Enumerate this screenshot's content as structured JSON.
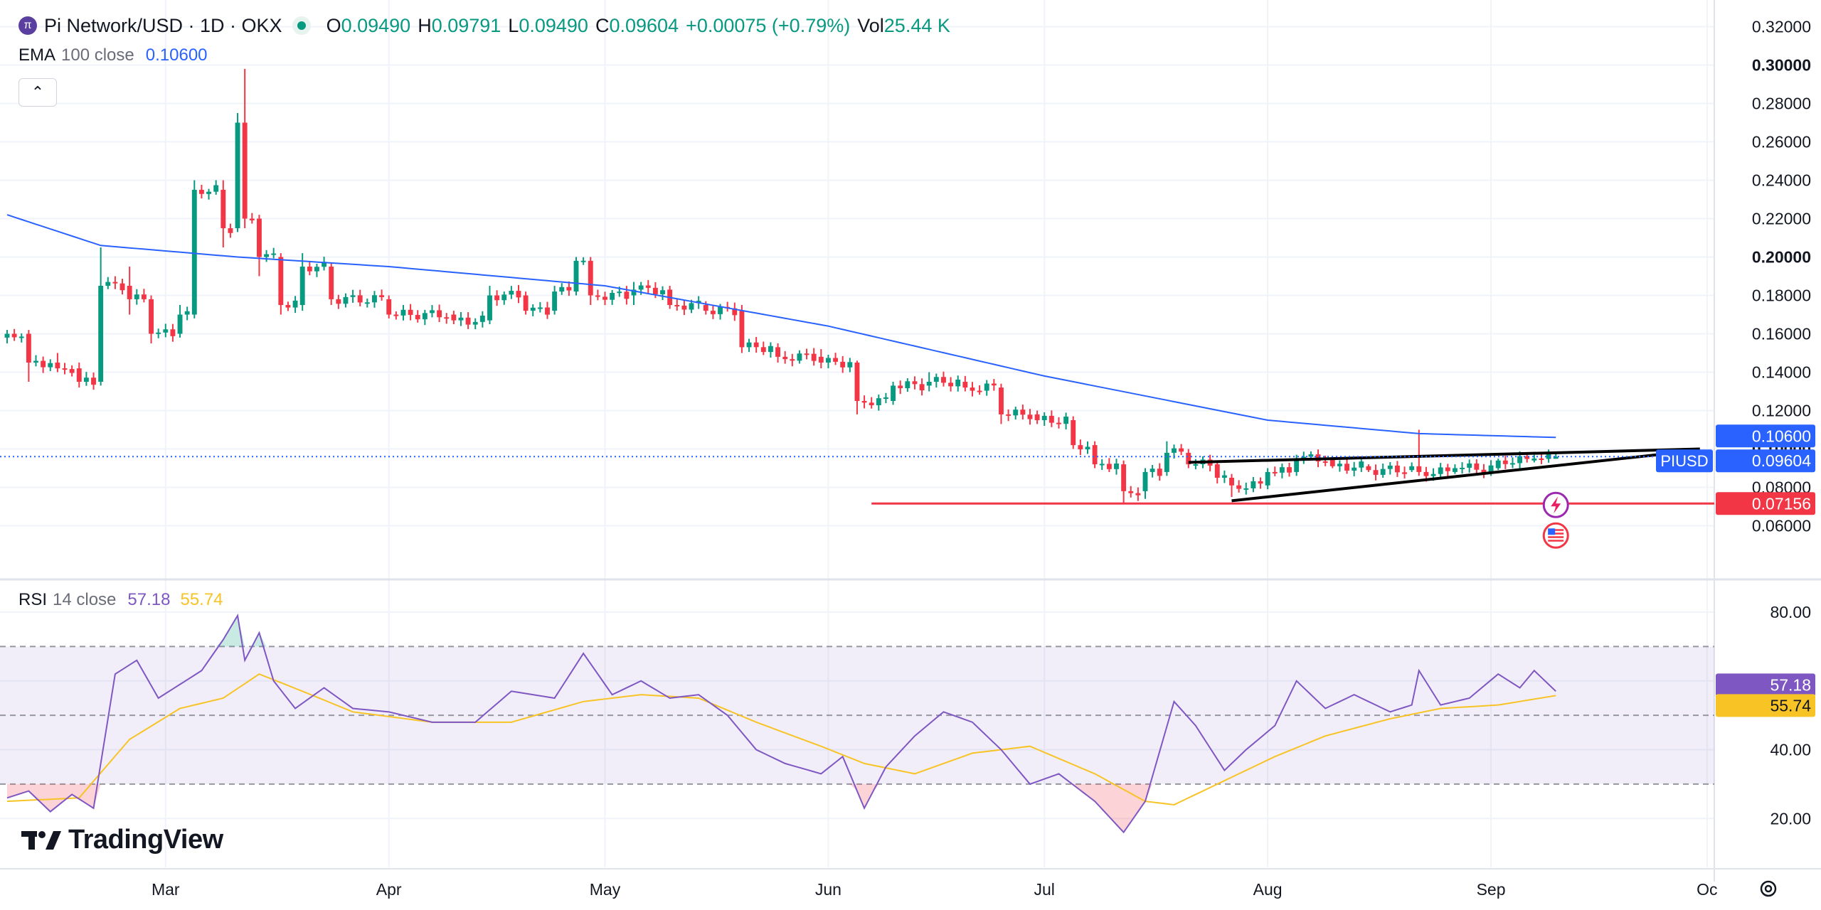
{
  "header": {
    "logo_glyph": "π",
    "symbol": "Pi Network/USD · 1D · OKX",
    "o_label": "O",
    "o_value": "0.09490",
    "h_label": "H",
    "h_value": "0.09791",
    "l_label": "L",
    "l_value": "0.09490",
    "c_label": "C",
    "c_value": "0.09604",
    "change": "+0.00075 (+0.79%)",
    "vol_label": "Vol",
    "vol_value": "25.44 K",
    "up_color": "#089981"
  },
  "ema": {
    "label": "EMA",
    "params": "100 close",
    "value": "0.10600",
    "color": "#2962ff"
  },
  "rsi": {
    "label": "RSI",
    "params": "14 close",
    "value": "57.18",
    "ma_value": "55.74",
    "line_color": "#7e57c2",
    "ma_color": "#f7c325"
  },
  "collapse_glyph": "⌃",
  "brand": "TradingView",
  "chart_data": [
    {
      "type": "candlestick",
      "title": "Pi Network/USD · 1D · OKX",
      "ylim": [
        0.045,
        0.325
      ],
      "y_ticks": [
        "0.32000",
        "0.30000",
        "0.28000",
        "0.26000",
        "0.24000",
        "0.22000",
        "0.20000",
        "0.18000",
        "0.16000",
        "0.14000",
        "0.12000",
        "0.10000",
        "0.08000",
        "0.06000"
      ],
      "y_tick_values": [
        0.32,
        0.3,
        0.28,
        0.26,
        0.24,
        0.22,
        0.2,
        0.18,
        0.16,
        0.14,
        0.12,
        0.1,
        0.08,
        0.06
      ],
      "x_start": "2025-02-07",
      "x_end": "2025-10-02",
      "x_ticks": [
        {
          "label": "Mar",
          "date": "2025-03-01"
        },
        {
          "label": "Apr",
          "date": "2025-04-01"
        },
        {
          "label": "May",
          "date": "2025-05-01"
        },
        {
          "label": "Jun",
          "date": "2025-06-01"
        },
        {
          "label": "Jul",
          "date": "2025-07-01"
        },
        {
          "label": "Aug",
          "date": "2025-08-01"
        },
        {
          "label": "Sep",
          "date": "2025-09-01"
        },
        {
          "label": "Oc",
          "date": "2025-10-01"
        }
      ],
      "up_color": "#089981",
      "down_color": "#f23645",
      "ohlc_anchors": [
        [
          "2025-02-07",
          0.158,
          0.162,
          0.155,
          0.16
        ],
        [
          "2025-02-10",
          0.16,
          0.162,
          0.135,
          0.145
        ],
        [
          "2025-02-14",
          0.145,
          0.15,
          0.14,
          0.142
        ],
        [
          "2025-02-17",
          0.142,
          0.145,
          0.132,
          0.135
        ],
        [
          "2025-02-20",
          0.135,
          0.205,
          0.133,
          0.185
        ],
        [
          "2025-02-24",
          0.185,
          0.195,
          0.17,
          0.178
        ],
        [
          "2025-02-27",
          0.178,
          0.18,
          0.155,
          0.16
        ],
        [
          "2025-03-03",
          0.16,
          0.175,
          0.158,
          0.17
        ],
        [
          "2025-03-05",
          0.17,
          0.24,
          0.168,
          0.235
        ],
        [
          "2025-03-09",
          0.235,
          0.24,
          0.205,
          0.215
        ],
        [
          "2025-03-11",
          0.215,
          0.275,
          0.213,
          0.27
        ],
        [
          "2025-03-12",
          0.27,
          0.298,
          0.215,
          0.22
        ],
        [
          "2025-03-14",
          0.22,
          0.222,
          0.19,
          0.2
        ],
        [
          "2025-03-17",
          0.2,
          0.202,
          0.17,
          0.175
        ],
        [
          "2025-03-20",
          0.175,
          0.202,
          0.172,
          0.195
        ],
        [
          "2025-03-24",
          0.195,
          0.197,
          0.175,
          0.178
        ],
        [
          "2025-04-01",
          0.178,
          0.18,
          0.168,
          0.17
        ],
        [
          "2025-04-10",
          0.17,
          0.172,
          0.165,
          0.167
        ],
        [
          "2025-04-15",
          0.167,
          0.185,
          0.165,
          0.18
        ],
        [
          "2025-04-20",
          0.18,
          0.182,
          0.17,
          0.172
        ],
        [
          "2025-04-24",
          0.172,
          0.185,
          0.17,
          0.182
        ],
        [
          "2025-04-27",
          0.182,
          0.2,
          0.18,
          0.198
        ],
        [
          "2025-04-29",
          0.198,
          0.2,
          0.175,
          0.18
        ],
        [
          "2025-05-05",
          0.18,
          0.187,
          0.175,
          0.183
        ],
        [
          "2025-05-10",
          0.183,
          0.185,
          0.173,
          0.175
        ],
        [
          "2025-05-15",
          0.175,
          0.177,
          0.17,
          0.172
        ],
        [
          "2025-05-20",
          0.172,
          0.175,
          0.15,
          0.153
        ],
        [
          "2025-05-25",
          0.153,
          0.155,
          0.145,
          0.148
        ],
        [
          "2025-05-31",
          0.148,
          0.152,
          0.142,
          0.145
        ],
        [
          "2025-06-05",
          0.145,
          0.146,
          0.118,
          0.125
        ],
        [
          "2025-06-10",
          0.125,
          0.135,
          0.123,
          0.133
        ],
        [
          "2025-06-15",
          0.133,
          0.14,
          0.13,
          0.135
        ],
        [
          "2025-06-20",
          0.135,
          0.138,
          0.13,
          0.132
        ],
        [
          "2025-06-25",
          0.132,
          0.134,
          0.113,
          0.118
        ],
        [
          "2025-06-30",
          0.118,
          0.12,
          0.113,
          0.115
        ],
        [
          "2025-07-05",
          0.115,
          0.117,
          0.1,
          0.102
        ],
        [
          "2025-07-08",
          0.102,
          0.104,
          0.09,
          0.092
        ],
        [
          "2025-07-12",
          0.092,
          0.094,
          0.072,
          0.078
        ],
        [
          "2025-07-15",
          0.078,
          0.09,
          0.074,
          0.088
        ],
        [
          "2025-07-18",
          0.088,
          0.104,
          0.086,
          0.098
        ],
        [
          "2025-07-21",
          0.098,
          0.1,
          0.09,
          0.092
        ],
        [
          "2025-07-25",
          0.092,
          0.094,
          0.082,
          0.085
        ],
        [
          "2025-07-27",
          0.085,
          0.087,
          0.075,
          0.081
        ],
        [
          "2025-08-01",
          0.081,
          0.09,
          0.079,
          0.088
        ],
        [
          "2025-08-05",
          0.088,
          0.097,
          0.086,
          0.095
        ],
        [
          "2025-08-10",
          0.095,
          0.096,
          0.09,
          0.091
        ],
        [
          "2025-08-15",
          0.091,
          0.092,
          0.088,
          0.089
        ],
        [
          "2025-08-21",
          0.089,
          0.093,
          0.088,
          0.091
        ],
        [
          "2025-08-22",
          0.091,
          0.11,
          0.086,
          0.088
        ],
        [
          "2025-08-27",
          0.088,
          0.092,
          0.087,
          0.09
        ],
        [
          "2025-09-02",
          0.09,
          0.095,
          0.089,
          0.094
        ],
        [
          "2025-09-07",
          0.094,
          0.097,
          0.093,
          0.095
        ],
        [
          "2025-09-10",
          0.0949,
          0.0979,
          0.0949,
          0.096
        ]
      ],
      "ema_anchors": [
        [
          "2025-02-07",
          0.222
        ],
        [
          "2025-02-20",
          0.206
        ],
        [
          "2025-03-11",
          0.2
        ],
        [
          "2025-04-01",
          0.195
        ],
        [
          "2025-05-01",
          0.185
        ],
        [
          "2025-06-01",
          0.164
        ],
        [
          "2025-07-01",
          0.138
        ],
        [
          "2025-08-01",
          0.115
        ],
        [
          "2025-08-22",
          0.108
        ],
        [
          "2025-09-10",
          0.106
        ]
      ],
      "trendlines": [
        {
          "from": [
            "2025-07-21",
            0.093
          ],
          "to": [
            "2025-09-30",
            0.1
          ]
        },
        {
          "from": [
            "2025-07-27",
            0.073
          ],
          "to": [
            "2025-09-29",
            0.099
          ]
        }
      ],
      "horizontal_line": {
        "value": 0.07156,
        "from": "2025-06-07",
        "label": "0.07156",
        "color": "#f23645"
      },
      "last_price": {
        "value": 0.09604,
        "label": "0.09604",
        "tag": "PIUSD"
      },
      "ema_last": {
        "value": 0.106,
        "label": "0.10600",
        "color": "#2962ff"
      }
    },
    {
      "type": "line",
      "title": "RSI 14 close",
      "ylim": [
        12,
        86
      ],
      "y_ticks": [
        "80.00",
        "60.00",
        "40.00",
        "20.00"
      ],
      "y_tick_values": [
        80,
        60,
        40,
        20
      ],
      "bands": {
        "upper": 70,
        "middle": 50,
        "lower": 30
      },
      "series": [
        {
          "name": "RSI",
          "color": "#7e57c2",
          "anchors": [
            [
              "2025-02-07",
              26
            ],
            [
              "2025-02-10",
              28
            ],
            [
              "2025-02-13",
              22
            ],
            [
              "2025-02-16",
              27
            ],
            [
              "2025-02-19",
              23
            ],
            [
              "2025-02-22",
              62
            ],
            [
              "2025-02-25",
              66
            ],
            [
              "2025-02-28",
              55
            ],
            [
              "2025-03-03",
              59
            ],
            [
              "2025-03-06",
              63
            ],
            [
              "2025-03-09",
              72
            ],
            [
              "2025-03-11",
              79
            ],
            [
              "2025-03-12",
              66
            ],
            [
              "2025-03-14",
              74
            ],
            [
              "2025-03-16",
              60
            ],
            [
              "2025-03-19",
              52
            ],
            [
              "2025-03-23",
              58
            ],
            [
              "2025-03-27",
              52
            ],
            [
              "2025-04-01",
              51
            ],
            [
              "2025-04-07",
              48
            ],
            [
              "2025-04-13",
              48
            ],
            [
              "2025-04-18",
              57
            ],
            [
              "2025-04-24",
              55
            ],
            [
              "2025-04-28",
              68
            ],
            [
              "2025-05-02",
              56
            ],
            [
              "2025-05-06",
              60
            ],
            [
              "2025-05-10",
              55
            ],
            [
              "2025-05-14",
              56
            ],
            [
              "2025-05-18",
              50
            ],
            [
              "2025-05-22",
              40
            ],
            [
              "2025-05-26",
              36
            ],
            [
              "2025-05-31",
              33
            ],
            [
              "2025-06-03",
              38
            ],
            [
              "2025-06-06",
              23
            ],
            [
              "2025-06-09",
              35
            ],
            [
              "2025-06-13",
              44
            ],
            [
              "2025-06-17",
              51
            ],
            [
              "2025-06-21",
              48
            ],
            [
              "2025-06-25",
              40
            ],
            [
              "2025-06-29",
              30
            ],
            [
              "2025-07-03",
              33
            ],
            [
              "2025-07-08",
              25
            ],
            [
              "2025-07-12",
              16
            ],
            [
              "2025-07-15",
              25
            ],
            [
              "2025-07-19",
              54
            ],
            [
              "2025-07-22",
              47
            ],
            [
              "2025-07-26",
              34
            ],
            [
              "2025-07-29",
              40
            ],
            [
              "2025-08-02",
              47
            ],
            [
              "2025-08-05",
              60
            ],
            [
              "2025-08-09",
              52
            ],
            [
              "2025-08-13",
              56
            ],
            [
              "2025-08-18",
              51
            ],
            [
              "2025-08-21",
              53
            ],
            [
              "2025-08-22",
              63
            ],
            [
              "2025-08-25",
              53
            ],
            [
              "2025-08-29",
              55
            ],
            [
              "2025-09-02",
              62
            ],
            [
              "2025-09-05",
              58
            ],
            [
              "2025-09-07",
              63
            ],
            [
              "2025-09-10",
              57
            ]
          ]
        },
        {
          "name": "RSI-based MA",
          "color": "#f7c325",
          "anchors": [
            [
              "2025-02-07",
              25
            ],
            [
              "2025-02-17",
              26
            ],
            [
              "2025-02-24",
              43
            ],
            [
              "2025-03-03",
              52
            ],
            [
              "2025-03-09",
              55
            ],
            [
              "2025-03-14",
              62
            ],
            [
              "2025-03-20",
              57
            ],
            [
              "2025-03-27",
              51
            ],
            [
              "2025-04-07",
              48
            ],
            [
              "2025-04-18",
              48
            ],
            [
              "2025-04-28",
              54
            ],
            [
              "2025-05-06",
              56
            ],
            [
              "2025-05-14",
              55
            ],
            [
              "2025-05-22",
              48
            ],
            [
              "2025-05-31",
              41
            ],
            [
              "2025-06-06",
              36
            ],
            [
              "2025-06-13",
              33
            ],
            [
              "2025-06-21",
              39
            ],
            [
              "2025-06-29",
              41
            ],
            [
              "2025-07-08",
              33
            ],
            [
              "2025-07-15",
              25
            ],
            [
              "2025-07-19",
              24
            ],
            [
              "2025-07-26",
              31
            ],
            [
              "2025-08-02",
              38
            ],
            [
              "2025-08-09",
              44
            ],
            [
              "2025-08-18",
              49
            ],
            [
              "2025-08-25",
              52
            ],
            [
              "2025-09-02",
              53
            ],
            [
              "2025-09-10",
              55.74
            ]
          ]
        }
      ],
      "value_tags": [
        {
          "value": 57.18,
          "label": "57.18",
          "color": "#7e57c2"
        },
        {
          "value": 55.74,
          "label": "55.74",
          "color": "#f7c325"
        }
      ]
    }
  ],
  "marker_icons": [
    "lightning-icon",
    "us-flag-icon"
  ]
}
